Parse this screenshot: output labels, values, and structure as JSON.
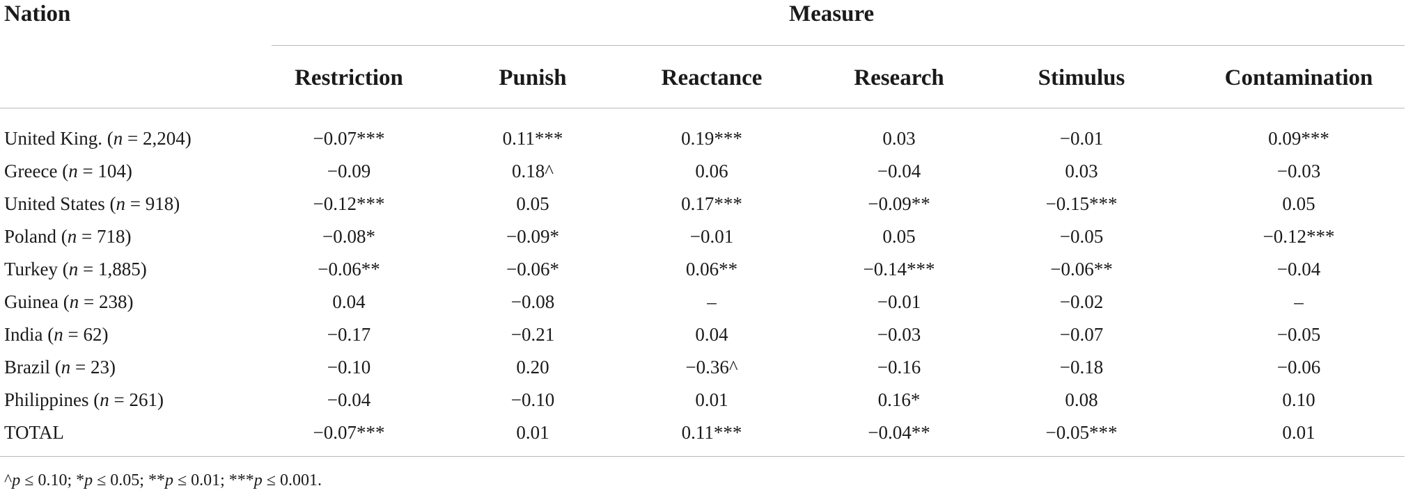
{
  "table": {
    "nation_header": "Nation",
    "measure_header": "Measure",
    "columns": [
      "Restriction",
      "Punish",
      "Reactance",
      "Research",
      "Stimulus",
      "Contamination"
    ],
    "rows": [
      {
        "nation": "United King.",
        "n": "2,204",
        "values": [
          "−0.07***",
          "0.11***",
          "0.19***",
          "0.03",
          "−0.01",
          "0.09***"
        ]
      },
      {
        "nation": "Greece",
        "n": "104",
        "values": [
          "−0.09",
          "0.18^",
          "0.06",
          "−0.04",
          "0.03",
          "−0.03"
        ]
      },
      {
        "nation": "United States",
        "n": "918",
        "values": [
          "−0.12***",
          "0.05",
          "0.17***",
          "−0.09**",
          "−0.15***",
          "0.05"
        ]
      },
      {
        "nation": "Poland",
        "n": "718",
        "values": [
          "−0.08*",
          "−0.09*",
          "−0.01",
          "0.05",
          "−0.05",
          "−0.12***"
        ]
      },
      {
        "nation": "Turkey",
        "n": "1,885",
        "values": [
          "−0.06**",
          "−0.06*",
          "0.06**",
          "−0.14***",
          "−0.06**",
          "−0.04"
        ]
      },
      {
        "nation": "Guinea",
        "n": "238",
        "values": [
          "0.04",
          "−0.08",
          "–",
          "−0.01",
          "−0.02",
          "–"
        ]
      },
      {
        "nation": "India",
        "n": "62",
        "values": [
          "−0.17",
          "−0.21",
          "0.04",
          "−0.03",
          "−0.07",
          "−0.05"
        ]
      },
      {
        "nation": "Brazil",
        "n": "23",
        "values": [
          "−0.10",
          "0.20",
          "−0.36^",
          "−0.16",
          "−0.18",
          "−0.06"
        ]
      },
      {
        "nation": "Philippines",
        "n": "261",
        "values": [
          "−0.04",
          "−0.10",
          "0.01",
          "0.16*",
          "0.08",
          "0.10"
        ]
      },
      {
        "nation": "TOTAL",
        "n": "",
        "values": [
          "−0.07***",
          "0.01",
          "0.11***",
          "−0.04**",
          "−0.05***",
          "0.01"
        ]
      }
    ],
    "footnote": "^p ≤ 0.10; *p ≤ 0.05; **p ≤ 0.01; ***p ≤ 0.001."
  }
}
